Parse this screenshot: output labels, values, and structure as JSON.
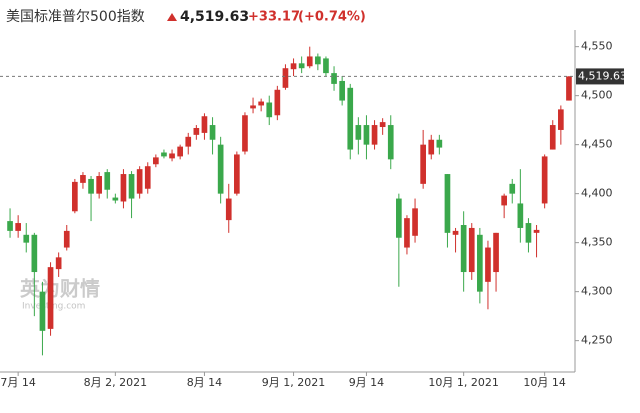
{
  "chart_data": {
    "type": "candlestick",
    "title": "美国标准普尔500指数",
    "last_price": {
      "value": 4519.63,
      "label": "4,519.63"
    },
    "change": "+33.17",
    "change_percent": "(+0.74%)",
    "watermark": "英为财情",
    "watermark_sub": "Investing.com",
    "up_color": "#d0302c",
    "down_color": "#3aa84b",
    "categories": [
      null,
      "7月 14",
      null,
      null,
      null,
      null,
      null,
      null,
      null,
      null,
      null,
      null,
      null,
      "8月 2, 2021",
      null,
      null,
      null,
      null,
      null,
      null,
      null,
      null,
      null,
      null,
      "8月 14",
      null,
      null,
      null,
      null,
      null,
      null,
      null,
      null,
      null,
      null,
      "9月 1, 2021",
      null,
      null,
      null,
      null,
      null,
      null,
      null,
      null,
      "9月 14",
      null,
      null,
      null,
      null,
      null,
      null,
      null,
      null,
      null,
      null,
      null,
      "10月 1, 2021",
      null,
      null,
      null,
      null,
      null,
      null,
      null,
      null,
      null,
      "10月 14",
      null,
      null,
      null
    ],
    "open": [
      4372,
      4362,
      4358,
      4358,
      4300,
      4262,
      4323,
      4345,
      4382,
      4411,
      4415,
      4400,
      4422,
      4396,
      4392,
      4420,
      4400,
      4405,
      4430,
      4442,
      4436,
      4438,
      4448,
      4460,
      4462,
      4470,
      4450,
      4373,
      4400,
      4443,
      4487,
      4490,
      4493,
      4480,
      4508,
      4527,
      4533,
      4530,
      4540,
      4538,
      4523,
      4515,
      4508,
      4470,
      4470,
      4450,
      4468,
      4470,
      4395,
      4345,
      4357,
      4410,
      4440,
      4455,
      4420,
      4358,
      4368,
      4320,
      4358,
      4310,
      4320,
      4388,
      4410,
      4390,
      4370,
      4360,
      4390,
      4445,
      4465,
      4495
    ],
    "high": [
      4385,
      4378,
      4370,
      4360,
      4310,
      4330,
      4340,
      4368,
      4415,
      4422,
      4418,
      4422,
      4425,
      4400,
      4425,
      4423,
      4428,
      4432,
      4440,
      4445,
      4445,
      4450,
      4462,
      4470,
      4482,
      4478,
      4458,
      4410,
      4443,
      4483,
      4498,
      4497,
      4500,
      4510,
      4532,
      4538,
      4540,
      4550,
      4543,
      4540,
      4530,
      4520,
      4512,
      4478,
      4480,
      4475,
      4477,
      4480,
      4400,
      4378,
      4395,
      4465,
      4460,
      4460,
      4420,
      4365,
      4382,
      4370,
      4365,
      4352,
      4360,
      4400,
      4415,
      4425,
      4375,
      4368,
      4440,
      4475,
      4490,
      4520
    ],
    "low": [
      4355,
      4355,
      4340,
      4275,
      4235,
      4255,
      4315,
      4342,
      4380,
      4405,
      4372,
      4395,
      4395,
      4390,
      4385,
      4375,
      4395,
      4400,
      4427,
      4436,
      4433,
      4435,
      4440,
      4455,
      4455,
      4440,
      4390,
      4360,
      4398,
      4440,
      4482,
      4484,
      4470,
      4475,
      4506,
      4520,
      4523,
      4528,
      4526,
      4520,
      4505,
      4490,
      4435,
      4440,
      4435,
      4445,
      4460,
      4425,
      4305,
      4338,
      4350,
      4405,
      4435,
      4440,
      4345,
      4340,
      4300,
      4312,
      4288,
      4282,
      4300,
      4375,
      4390,
      4350,
      4340,
      4335,
      4385,
      4445,
      4450,
      4495
    ],
    "close": [
      4362,
      4370,
      4350,
      4320,
      4260,
      4325,
      4335,
      4362,
      4412,
      4419,
      4400,
      4418,
      4404,
      4393,
      4420,
      4395,
      4425,
      4428,
      4437,
      4438,
      4441,
      4448,
      4458,
      4467,
      4479,
      4455,
      4400,
      4395,
      4440,
      4480,
      4490,
      4494,
      4478,
      4506,
      4528,
      4533,
      4528,
      4540,
      4532,
      4523,
      4512,
      4495,
      4445,
      4455,
      4450,
      4470,
      4473,
      4435,
      4355,
      4375,
      4385,
      4450,
      4455,
      4447,
      4360,
      4362,
      4320,
      4365,
      4300,
      4345,
      4360,
      4398,
      4400,
      4365,
      4350,
      4363,
      4438,
      4470,
      4486,
      4519.63
    ],
    "ylim": [
      4218,
      4567
    ],
    "yticks": [
      {
        "value": 4250,
        "label": "4,250"
      },
      {
        "value": 4300,
        "label": "4,300"
      },
      {
        "value": 4350,
        "label": "4,350"
      },
      {
        "value": 4400,
        "label": "4,400"
      },
      {
        "value": 4450,
        "label": "4,450"
      },
      {
        "value": 4500,
        "label": "4,500"
      },
      {
        "value": 4550,
        "label": "4,550"
      }
    ]
  }
}
